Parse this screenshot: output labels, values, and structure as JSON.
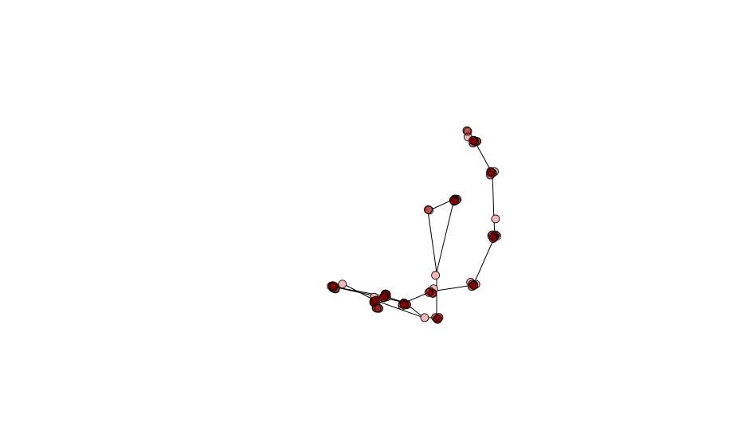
{
  "figure": {
    "background_color": "#ffffff",
    "edge_color": "#000000",
    "node_fill_dense": "#8b0000",
    "node_fill_light": "#f4b6b6",
    "node_outline": "#000000"
  },
  "chart_data": {
    "type": "network",
    "edges": [
      {
        "from": "n1",
        "to": "n2"
      },
      {
        "from": "n2",
        "to": "n3"
      },
      {
        "from": "n3",
        "to": "n4"
      },
      {
        "from": "n4",
        "to": "n5"
      },
      {
        "from": "n5",
        "to": "n6"
      },
      {
        "from": "n6",
        "to": "n7"
      },
      {
        "from": "n7",
        "to": "n8"
      },
      {
        "from": "n8",
        "to": "n9"
      },
      {
        "from": "n9",
        "to": "n10"
      },
      {
        "from": "n9",
        "to": "n12"
      },
      {
        "from": "n12",
        "to": "n13"
      },
      {
        "from": "n13",
        "to": "n14"
      },
      {
        "from": "n8",
        "to": "n15"
      },
      {
        "from": "n15",
        "to": "n16"
      },
      {
        "from": "n16",
        "to": "n17"
      },
      {
        "from": "n17",
        "to": "n18"
      },
      {
        "from": "n17",
        "to": "n19"
      }
    ]
  }
}
